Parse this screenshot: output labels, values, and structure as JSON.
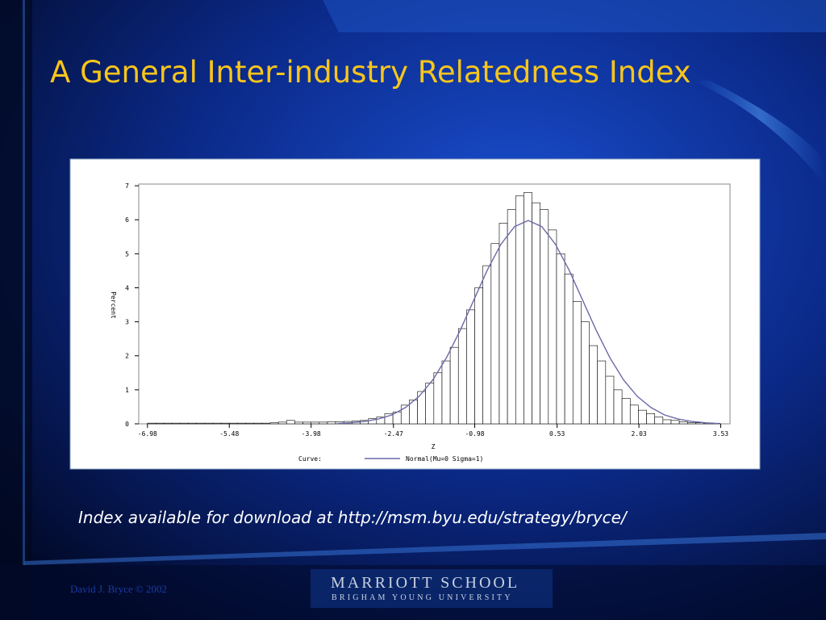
{
  "slide": {
    "title": "A General Inter-industry Relatedness Index",
    "note": "Index available for download at http://msm.byu.edu/strategy/bryce/",
    "footer": "David J. Bryce © 2002",
    "logo_main": "MARRIOTT SCHOOL",
    "logo_sub": "BRIGHAM YOUNG UNIVERSITY"
  },
  "chart_data": {
    "type": "histogram",
    "xlabel": "Z",
    "ylabel": "Percent",
    "bins": [
      -6.98,
      -6.83,
      -6.68,
      -6.53,
      -6.38,
      -6.23,
      -6.08,
      -5.93,
      -5.78,
      -5.63,
      -5.48,
      -5.33,
      -5.18,
      -5.03,
      -4.88,
      -4.73,
      -4.58,
      -4.43,
      -4.28,
      -4.13,
      -3.98,
      -3.83,
      -3.68,
      -3.53,
      -3.38,
      -3.23,
      -3.08,
      -2.93,
      -2.78,
      -2.63,
      -2.48,
      -2.33,
      -2.18,
      -2.03,
      -1.88,
      -1.73,
      -1.58,
      -1.43,
      -1.28,
      -1.13,
      -0.98,
      -0.83,
      -0.68,
      -0.53,
      -0.38,
      -0.23,
      -0.08,
      0.07,
      0.22,
      0.37,
      0.52,
      0.67,
      0.82,
      0.97,
      1.12,
      1.27,
      1.42,
      1.57,
      1.72,
      1.87,
      2.02,
      2.17,
      2.32,
      2.47,
      2.62,
      2.77,
      2.92,
      3.07,
      3.22,
      3.37,
      3.52
    ],
    "values": [
      0.02,
      0.02,
      0.02,
      0.02,
      0.02,
      0.02,
      0.02,
      0.02,
      0.02,
      0.02,
      0.02,
      0.02,
      0.02,
      0.02,
      0.02,
      0.03,
      0.05,
      0.1,
      0.05,
      0.05,
      0.05,
      0.05,
      0.06,
      0.06,
      0.07,
      0.08,
      0.1,
      0.15,
      0.2,
      0.3,
      0.35,
      0.55,
      0.7,
      0.95,
      1.2,
      1.5,
      1.85,
      2.25,
      2.8,
      3.35,
      4.0,
      4.65,
      5.3,
      5.9,
      6.3,
      6.7,
      6.8,
      6.5,
      6.3,
      5.7,
      5.0,
      4.4,
      3.6,
      3.0,
      2.3,
      1.85,
      1.4,
      1.0,
      0.75,
      0.55,
      0.4,
      0.3,
      0.2,
      0.12,
      0.1,
      0.06,
      0.04,
      0.03,
      0.02,
      0.01
    ],
    "color": "#ffffff",
    "xlim": [
      -7.14,
      3.7
    ],
    "xticks": [
      -6.98,
      -5.48,
      -3.98,
      -2.47,
      -0.98,
      0.53,
      2.03,
      3.53
    ],
    "ylim": [
      0,
      7.05
    ],
    "yticks": [
      0,
      1,
      2,
      3,
      4,
      5,
      6,
      7
    ],
    "legend_title": "Curve:",
    "curve": {
      "name": "Normal(Mu=0 Sigma=1)",
      "color": "#6a6aa8",
      "x": [
        -3.5,
        -3.25,
        -3,
        -2.75,
        -2.5,
        -2.25,
        -2,
        -1.75,
        -1.5,
        -1.25,
        -1,
        -0.75,
        -0.5,
        -0.25,
        0,
        0.25,
        0.5,
        0.75,
        1,
        1.25,
        1.5,
        1.75,
        2,
        2.25,
        2.5,
        2.75,
        3,
        3.25,
        3.5
      ],
      "values": [
        0.01,
        0.03,
        0.07,
        0.14,
        0.26,
        0.48,
        0.81,
        1.29,
        1.94,
        2.74,
        3.63,
        4.52,
        5.28,
        5.8,
        5.98,
        5.8,
        5.28,
        4.52,
        3.63,
        2.74,
        1.94,
        1.29,
        0.81,
        0.48,
        0.26,
        0.14,
        0.07,
        0.03,
        0.01
      ]
    }
  }
}
